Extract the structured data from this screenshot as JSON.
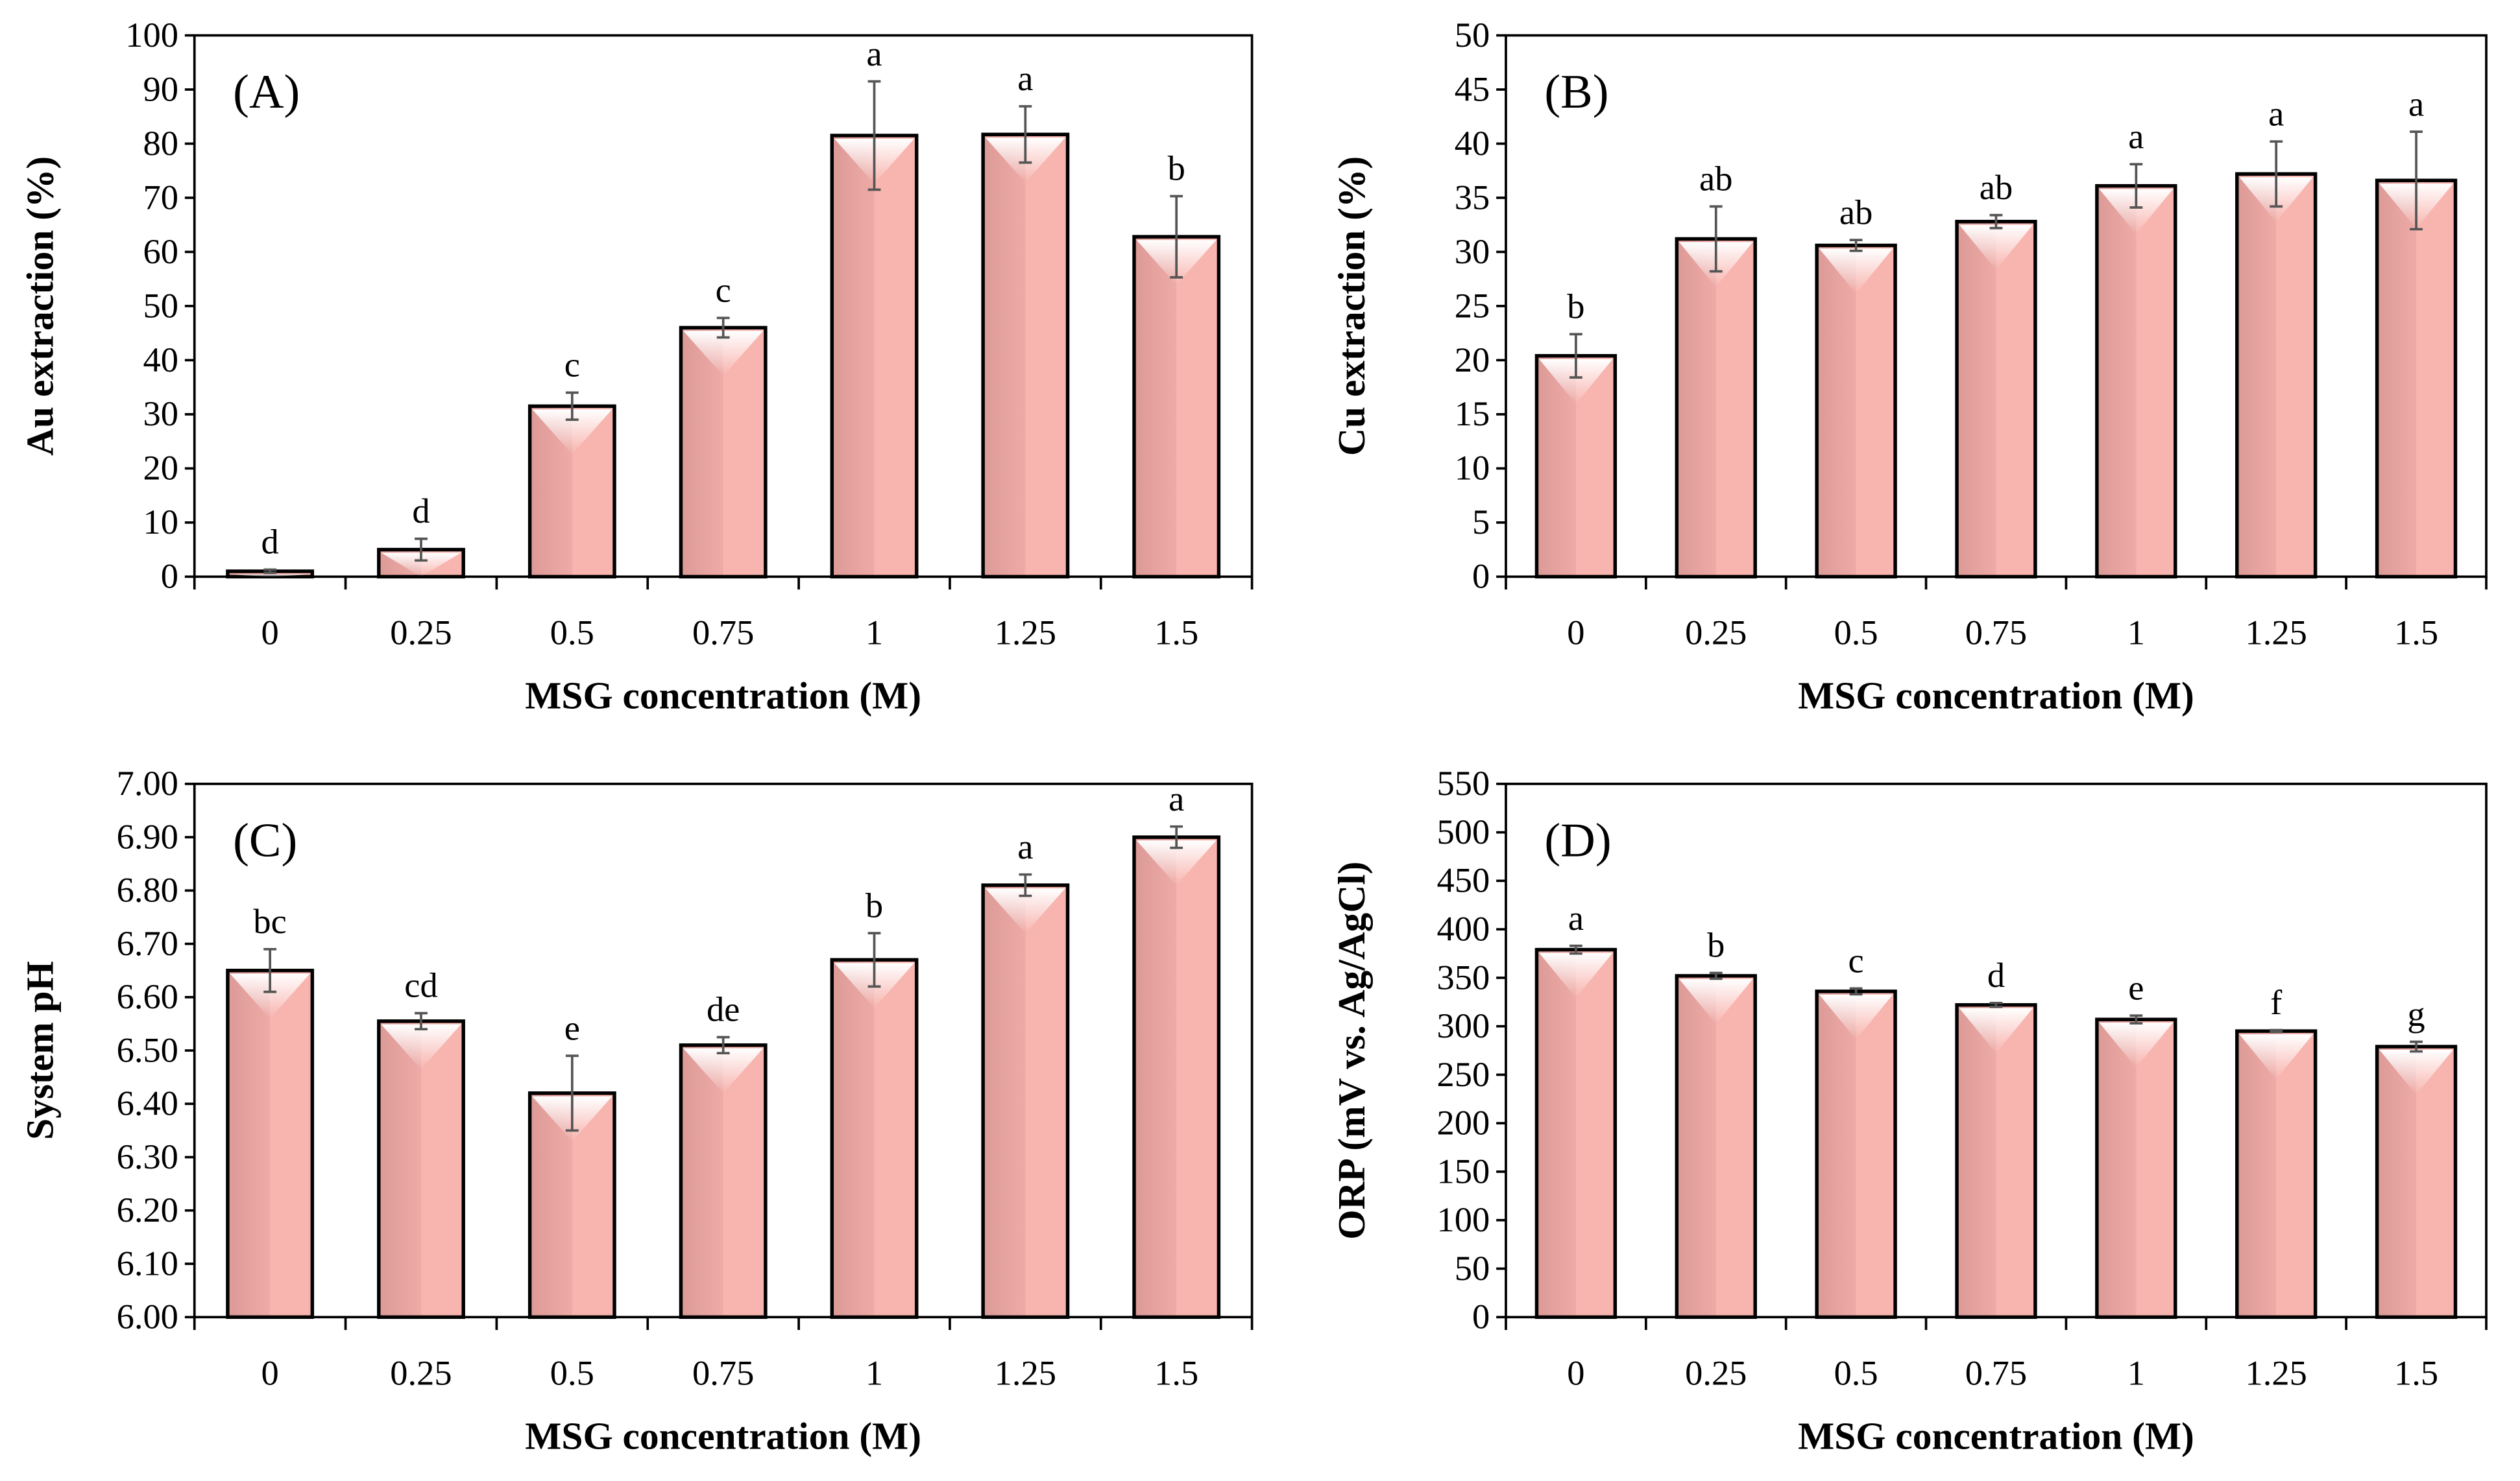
{
  "colors": {
    "bar": "#f8b4ae",
    "bar_dark": "#e39f9b",
    "error": "#555555",
    "axis": "#000000"
  },
  "chart_data": [
    {
      "type": "bar",
      "panel_label": "(A)",
      "categories": [
        "0",
        "0.25",
        "0.5",
        "0.75",
        "1",
        "1.25",
        "1.5"
      ],
      "values": [
        1.0,
        5.0,
        31.5,
        46.0,
        81.5,
        81.7,
        62.8
      ],
      "errors": [
        0.3,
        2.0,
        2.5,
        1.8,
        10.0,
        5.2,
        7.5
      ],
      "significance": [
        "d",
        "d",
        "c",
        "c",
        "a",
        "a",
        "b"
      ],
      "xlabel": "MSG concentration (M)",
      "ylabel": "Au extraction (%)",
      "ylim": [
        0,
        100
      ],
      "yticks": [
        "0",
        "10",
        "20",
        "30",
        "40",
        "50",
        "60",
        "70",
        "80",
        "90",
        "100"
      ]
    },
    {
      "type": "bar",
      "panel_label": "(B)",
      "categories": [
        "0",
        "0.25",
        "0.5",
        "0.75",
        "1",
        "1.25",
        "1.5"
      ],
      "values": [
        20.4,
        31.2,
        30.6,
        32.8,
        36.1,
        37.2,
        36.6
      ],
      "errors": [
        2.0,
        3.0,
        0.5,
        0.6,
        2.0,
        3.0,
        4.5
      ],
      "significance": [
        "b",
        "ab",
        "ab",
        "ab",
        "a",
        "a",
        "a"
      ],
      "xlabel": "MSG concentration (M)",
      "ylabel": "Cu extraction (%)",
      "ylim": [
        0,
        50
      ],
      "yticks": [
        "0",
        "5",
        "10",
        "15",
        "20",
        "25",
        "30",
        "35",
        "40",
        "45",
        "50"
      ]
    },
    {
      "type": "bar",
      "panel_label": "(C)",
      "categories": [
        "0",
        "0.25",
        "0.5",
        "0.75",
        "1",
        "1.25",
        "1.5"
      ],
      "values": [
        6.65,
        6.555,
        6.42,
        6.51,
        6.67,
        6.81,
        6.9
      ],
      "errors": [
        0.04,
        0.015,
        0.07,
        0.015,
        0.05,
        0.02,
        0.02
      ],
      "significance": [
        "bc",
        "cd",
        "e",
        "de",
        "b",
        "a",
        "a"
      ],
      "xlabel": "MSG concentration (M)",
      "ylabel": "System pH",
      "ylim": [
        6.0,
        7.0
      ],
      "yticks": [
        "6.00",
        "6.10",
        "6.20",
        "6.30",
        "6.40",
        "6.50",
        "6.60",
        "6.70",
        "6.80",
        "6.90",
        "7.00"
      ]
    },
    {
      "type": "bar",
      "panel_label": "(D)",
      "categories": [
        "0",
        "0.25",
        "0.5",
        "0.75",
        "1",
        "1.25",
        "1.5"
      ],
      "values": [
        379,
        352,
        336,
        322,
        307,
        295,
        279
      ],
      "errors": [
        4,
        3,
        3,
        2,
        4,
        1,
        5
      ],
      "significance": [
        "a",
        "b",
        "c",
        "d",
        "e",
        "f",
        "g"
      ],
      "xlabel": "MSG concentration (M)",
      "ylabel": "ORP (mV vs. Ag/AgCl)",
      "ylim": [
        0,
        550
      ],
      "yticks": [
        "0",
        "50",
        "100",
        "150",
        "200",
        "250",
        "300",
        "350",
        "400",
        "450",
        "500",
        "550"
      ]
    }
  ]
}
